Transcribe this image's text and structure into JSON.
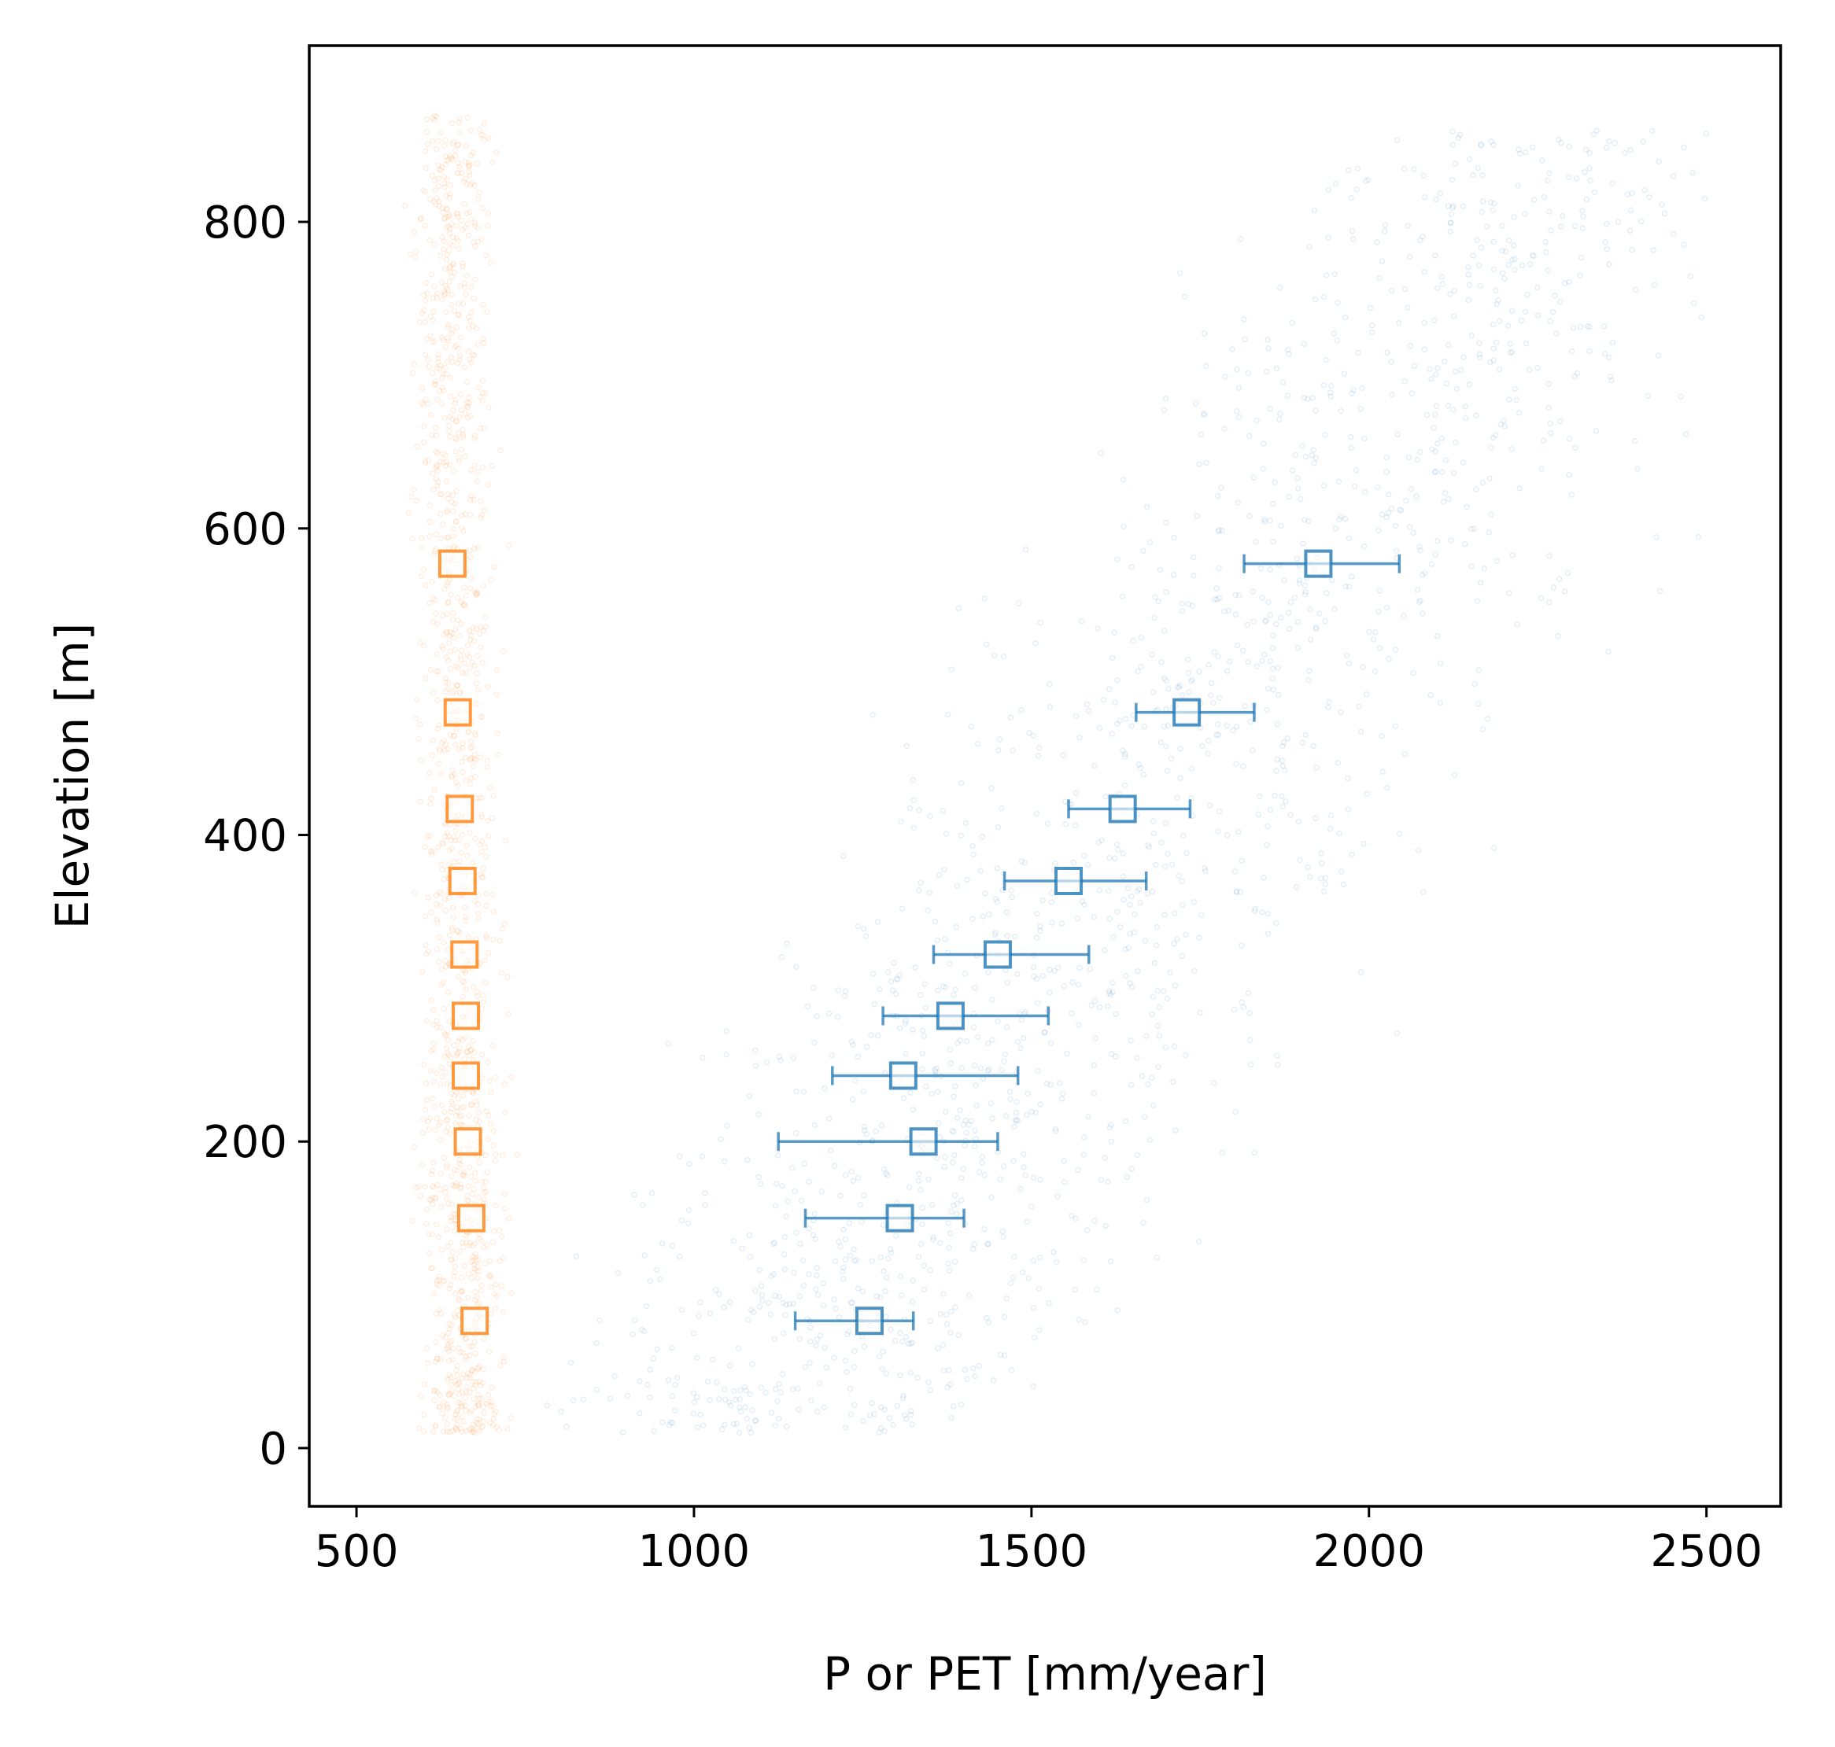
{
  "chart_data": {
    "type": "scatter",
    "title": "",
    "xlabel": "P or PET [mm/year]",
    "ylabel": "Elevation [m]",
    "xlim": [
      430,
      2610
    ],
    "ylim": [
      -38,
      915
    ],
    "xticks": [
      500,
      1000,
      1500,
      2000,
      2500
    ],
    "yticks": [
      0,
      200,
      400,
      600,
      800
    ],
    "grid": false,
    "legend": "none",
    "colors": {
      "P": "#1f77b4",
      "PET": "#ff7f0e"
    },
    "background_points": {
      "P": {
        "description_free": true,
        "approx_elevation_range": [
          5,
          870
        ],
        "approx_x_range": [
          780,
          2500
        ]
      },
      "PET": {
        "description_free": true,
        "approx_elevation_range": [
          5,
          870
        ],
        "approx_x_range": [
          600,
          760
        ]
      }
    },
    "series": [
      {
        "key": "P",
        "marker": "open-square",
        "color": "#1f77b4",
        "points": [
          {
            "y": 83,
            "x": 1260,
            "xerr_low": 1150,
            "xerr_high": 1325
          },
          {
            "y": 150,
            "x": 1305,
            "xerr_low": 1165,
            "xerr_high": 1400
          },
          {
            "y": 200,
            "x": 1340,
            "xerr_low": 1125,
            "xerr_high": 1450
          },
          {
            "y": 243,
            "x": 1310,
            "xerr_low": 1205,
            "xerr_high": 1480
          },
          {
            "y": 282,
            "x": 1380,
            "xerr_low": 1280,
            "xerr_high": 1525
          },
          {
            "y": 322,
            "x": 1450,
            "xerr_low": 1355,
            "xerr_high": 1585
          },
          {
            "y": 370,
            "x": 1555,
            "xerr_low": 1460,
            "xerr_high": 1670
          },
          {
            "y": 417,
            "x": 1635,
            "xerr_low": 1555,
            "xerr_high": 1735
          },
          {
            "y": 480,
            "x": 1730,
            "xerr_low": 1655,
            "xerr_high": 1830
          },
          {
            "y": 577,
            "x": 1925,
            "xerr_low": 1815,
            "xerr_high": 2045
          }
        ]
      },
      {
        "key": "PET",
        "marker": "open-square",
        "color": "#ff7f0e",
        "points": [
          {
            "y": 83,
            "x": 675
          },
          {
            "y": 150,
            "x": 670
          },
          {
            "y": 200,
            "x": 665
          },
          {
            "y": 243,
            "x": 662
          },
          {
            "y": 282,
            "x": 662
          },
          {
            "y": 322,
            "x": 660
          },
          {
            "y": 370,
            "x": 657
          },
          {
            "y": 417,
            "x": 653
          },
          {
            "y": 480,
            "x": 650
          },
          {
            "y": 577,
            "x": 642
          }
        ]
      }
    ]
  }
}
